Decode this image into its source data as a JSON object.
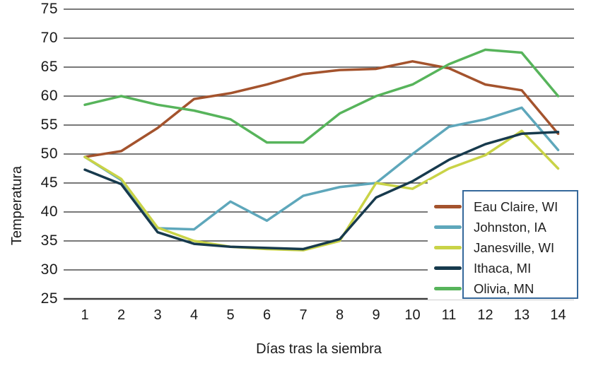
{
  "chart_data": {
    "type": "line",
    "title": "",
    "xlabel": "Días tras la siembra",
    "ylabel": "Temperatura",
    "x": [
      1,
      2,
      3,
      4,
      5,
      6,
      7,
      8,
      9,
      10,
      11,
      12,
      13,
      14
    ],
    "ylim": [
      25,
      75
    ],
    "yticks": [
      25,
      30,
      35,
      40,
      45,
      50,
      55,
      60,
      65,
      70,
      75
    ],
    "grid": true,
    "legend_position": "inside-bottom-right",
    "series": [
      {
        "name": "Eau Claire, WI",
        "color": "#A4532D",
        "values": [
          49.5,
          50.5,
          54.5,
          59.5,
          60.5,
          62,
          63.8,
          64.5,
          64.7,
          66,
          64.8,
          62,
          61,
          53.5
        ]
      },
      {
        "name": "Johnston, IA",
        "color": "#5EA7BB",
        "values": [
          49.5,
          45.5,
          37.2,
          37,
          41.8,
          38.5,
          42.8,
          44.3,
          45,
          50,
          54.7,
          56,
          58,
          50.7
        ]
      },
      {
        "name": "Janesville, WI",
        "color": "#C9D347",
        "values": [
          49.5,
          45.7,
          37.3,
          35,
          34,
          33.6,
          33.4,
          35,
          45,
          44,
          47.5,
          49.8,
          54,
          47.5
        ]
      },
      {
        "name": "Ithaca, MI",
        "color": "#173A4D",
        "values": [
          47.3,
          44.8,
          36.5,
          34.5,
          34,
          33.8,
          33.6,
          35.3,
          42.5,
          45.3,
          49,
          51.7,
          53.5,
          53.8
        ]
      },
      {
        "name": "Olivia, MN",
        "color": "#57B45B",
        "values": [
          58.5,
          60,
          58.5,
          57.5,
          56,
          52,
          52,
          57,
          60,
          62,
          65.5,
          68,
          67.5,
          60
        ]
      }
    ],
    "legend_border_color": "#35689B",
    "gridline_color": "#4D4D4D",
    "axis_line_color": "#3D3D3D"
  }
}
